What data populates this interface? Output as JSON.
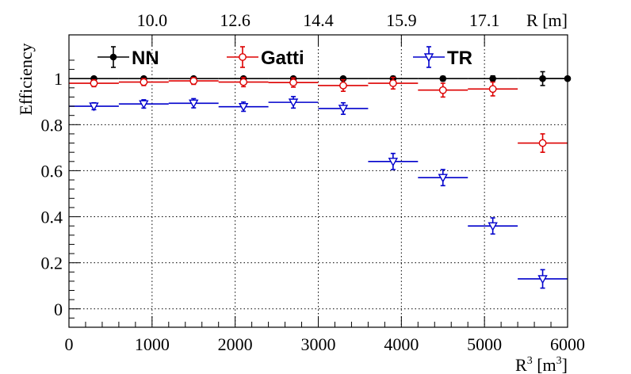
{
  "chart_data": {
    "type": "scatter",
    "ylabel": "Efficiency",
    "xlabel_base": "R",
    "xlabel_sup": "3",
    "xlabel_unit_open": " [m",
    "xlabel_unit_sup": "3",
    "xlabel_unit_close": "]",
    "top_axis_label": "R [m]",
    "xlim": [
      0,
      6000
    ],
    "ylim": [
      -0.08,
      1.19
    ],
    "x_ticks": [
      0,
      1000,
      2000,
      3000,
      4000,
      5000,
      6000
    ],
    "y_ticks": [
      0,
      0.2,
      0.4,
      0.6,
      0.8,
      1
    ],
    "x_tick_labels": [
      "0",
      "1000",
      "2000",
      "3000",
      "4000",
      "5000",
      "6000"
    ],
    "y_tick_labels": [
      "0",
      "0.2",
      "0.4",
      "0.6",
      "0.8",
      "1"
    ],
    "top_ticks": [
      {
        "label": "10.0",
        "value": 1000
      },
      {
        "label": "12.6",
        "value": 2000
      },
      {
        "label": "14.4",
        "value": 3000
      },
      {
        "label": "15.9",
        "value": 4000
      },
      {
        "label": "17.1",
        "value": 5000
      }
    ],
    "grid": true,
    "legend_position": "top",
    "series": [
      {
        "name": "NN",
        "color": "#000000",
        "marker": "filled-circle",
        "x": [
          300,
          900,
          1500,
          2100,
          2700,
          3300,
          3900,
          4500,
          5100,
          5700,
          6000
        ],
        "x_halfwidth": [
          300,
          300,
          300,
          300,
          300,
          300,
          300,
          300,
          300,
          300,
          300
        ],
        "y": [
          1.0,
          1.0,
          1.0,
          1.0,
          1.0,
          1.0,
          1.0,
          1.0,
          1.0,
          1.0,
          1.0
        ],
        "yerr": [
          0.005,
          0.008,
          0.006,
          0.008,
          0.008,
          0.006,
          0.01,
          0.01,
          0.012,
          0.03,
          0.0
        ]
      },
      {
        "name": "Gatti",
        "color": "#dd0000",
        "marker": "open-circle",
        "x": [
          300,
          900,
          1500,
          2100,
          2700,
          3300,
          3900,
          4500,
          5100,
          5700
        ],
        "x_halfwidth": [
          300,
          300,
          300,
          300,
          300,
          300,
          300,
          300,
          300,
          300
        ],
        "y": [
          0.98,
          0.985,
          0.99,
          0.985,
          0.983,
          0.97,
          0.98,
          0.95,
          0.955,
          0.72
        ],
        "yerr": [
          0.015,
          0.015,
          0.015,
          0.02,
          0.02,
          0.025,
          0.025,
          0.03,
          0.03,
          0.04
        ]
      },
      {
        "name": "TR",
        "color": "#0000cc",
        "marker": "open-triangle-down",
        "x": [
          300,
          900,
          1500,
          2100,
          2700,
          3300,
          3900,
          4500,
          5100,
          5700
        ],
        "x_halfwidth": [
          300,
          300,
          300,
          300,
          300,
          300,
          300,
          300,
          300,
          300
        ],
        "y": [
          0.88,
          0.89,
          0.893,
          0.878,
          0.897,
          0.87,
          0.64,
          0.57,
          0.36,
          0.13
        ],
        "yerr": [
          0.015,
          0.018,
          0.02,
          0.02,
          0.025,
          0.025,
          0.035,
          0.035,
          0.035,
          0.04
        ]
      }
    ]
  }
}
